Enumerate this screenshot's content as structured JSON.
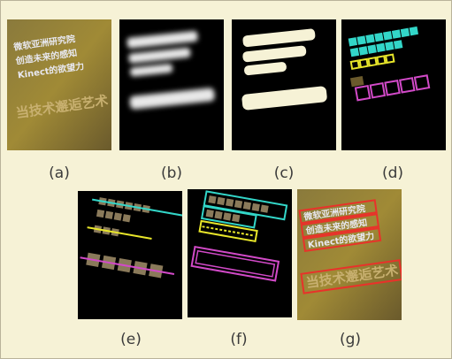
{
  "figure": {
    "panels": [
      {
        "id": "a",
        "caption": "(a)"
      },
      {
        "id": "b",
        "caption": "(b)"
      },
      {
        "id": "c",
        "caption": "(c)"
      },
      {
        "id": "d",
        "caption": "(d)"
      },
      {
        "id": "e",
        "caption": "(e)"
      },
      {
        "id": "f",
        "caption": "(f)"
      },
      {
        "id": "g",
        "caption": "(g)"
      }
    ],
    "scene_text": {
      "line1": "微软亚洲研究院",
      "line2": "创造未来的感知",
      "line3": "Kinect的欲望力",
      "line4": "当技术邂逅艺术"
    }
  },
  "colors": {
    "background": "#f6f2d6",
    "cyan": "#33d6c8",
    "yellow": "#e8e62a",
    "magenta": "#d24ac8",
    "red": "#e8322a"
  }
}
